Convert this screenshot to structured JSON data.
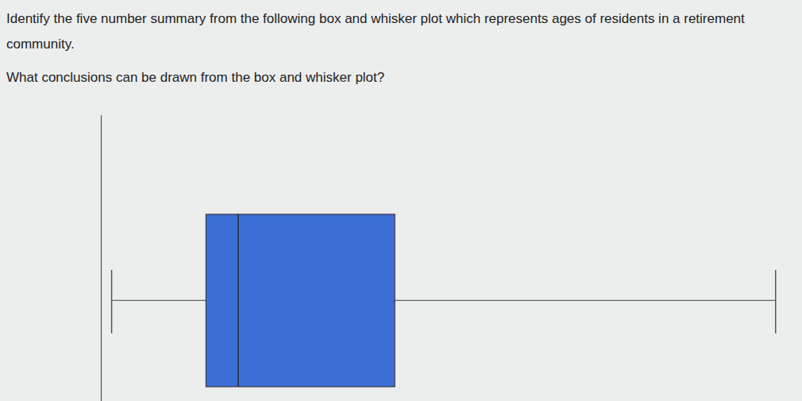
{
  "chart_data": {
    "type": "box",
    "title": "Identify the five number summary from the following box and whisker plot which represents ages of residents in a retirement community.",
    "subtitle": "What conclusions can be drawn from the box and whisker plot?",
    "min": 1.5,
    "q1": 15.2,
    "median": 19.8,
    "q3": 42.5,
    "max": 97.5,
    "xlim": [
      0,
      100
    ],
    "tick_labels": false,
    "color": "#3b6fd6"
  }
}
